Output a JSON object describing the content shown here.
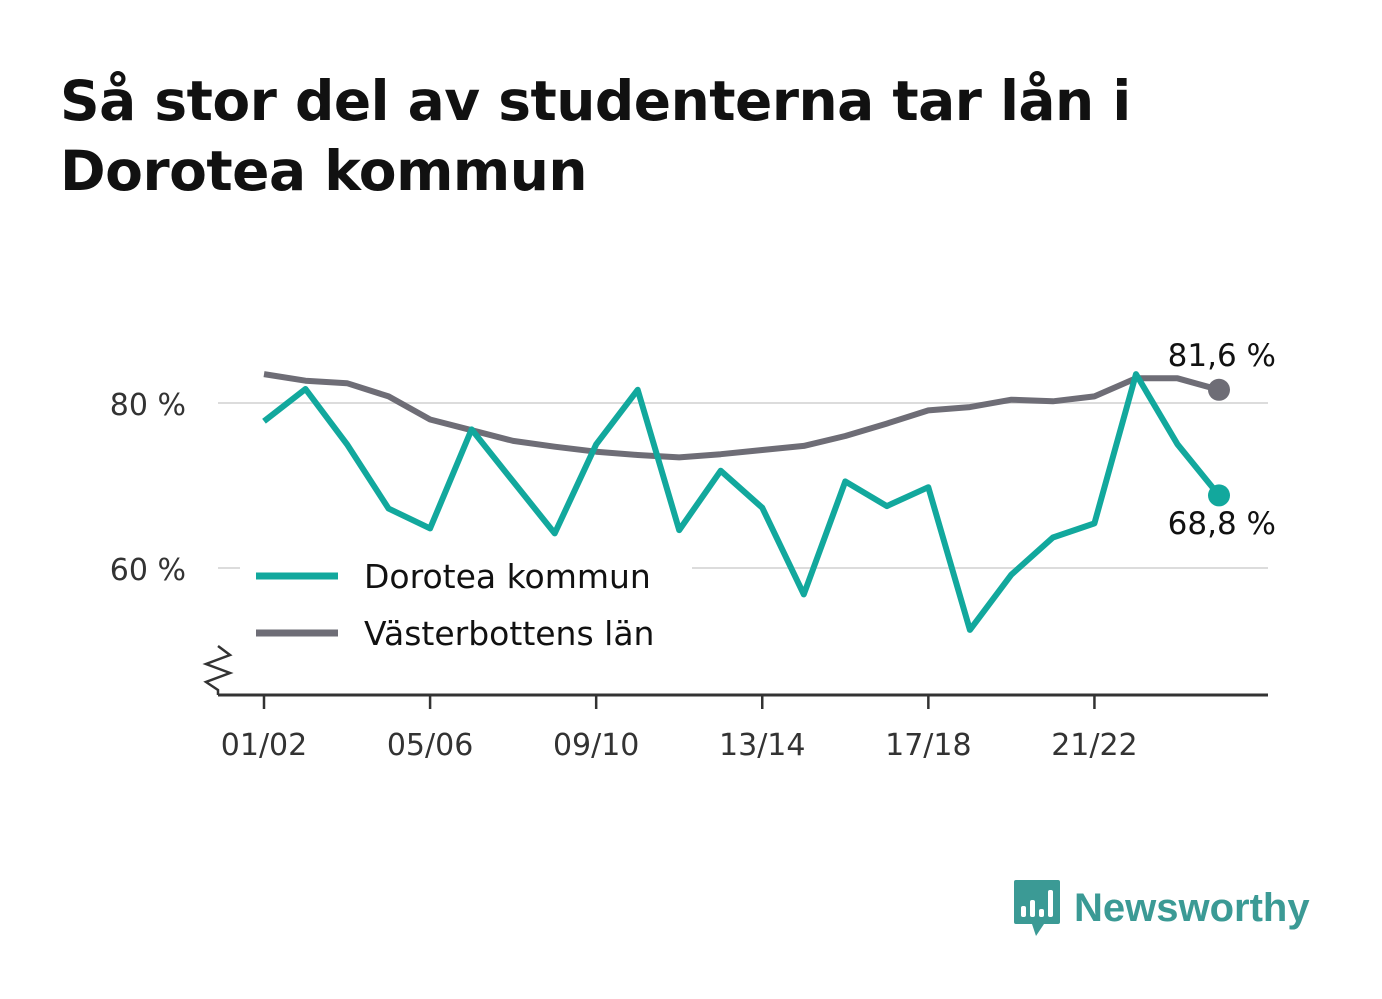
{
  "title": "Så stor del av studenterna tar lån i Dorotea kommun",
  "brand": {
    "name": "Newsworthy",
    "icon": "newsworthy-logo-icon",
    "color": "#3b9a95"
  },
  "chart_data": {
    "type": "line",
    "title": "Så stor del av studenterna tar lån i Dorotea kommun",
    "xlabel": "",
    "ylabel": "",
    "ylim": [
      45,
      89
    ],
    "y_axis_break": true,
    "grid": "horizontal",
    "legend_position": "bottom-left",
    "yticks": [
      60,
      80
    ],
    "ytick_labels": [
      "60 %",
      "80 %"
    ],
    "x": [
      "01/02",
      "02/03",
      "03/04",
      "04/05",
      "05/06",
      "06/07",
      "07/08",
      "08/09",
      "09/10",
      "10/11",
      "11/12",
      "12/13",
      "13/14",
      "14/15",
      "15/16",
      "16/17",
      "17/18",
      "18/19",
      "19/20",
      "20/21",
      "21/22",
      "22/23",
      "23/24",
      "24/25"
    ],
    "xticks": [
      "01/02",
      "05/06",
      "09/10",
      "13/14",
      "17/18",
      "21/22"
    ],
    "series": [
      {
        "name": "Dorotea kommun",
        "color": "#12a89d",
        "values": [
          77.8,
          81.7,
          75.0,
          67.2,
          64.8,
          76.8,
          70.5,
          64.2,
          75.0,
          81.6,
          64.6,
          71.8,
          67.3,
          56.8,
          70.5,
          67.5,
          69.8,
          52.5,
          59.2,
          63.7,
          65.4,
          83.5,
          75.0,
          68.8
        ],
        "end_label": "68,8 %"
      },
      {
        "name": "Västerbottens län",
        "color": "#6e6d76",
        "values": [
          83.5,
          82.7,
          82.4,
          80.8,
          78.0,
          76.7,
          75.4,
          74.7,
          74.1,
          73.7,
          73.4,
          73.8,
          74.3,
          74.8,
          76.0,
          77.5,
          79.1,
          79.5,
          80.4,
          80.2,
          80.8,
          83.0,
          83.0,
          81.6
        ],
        "end_label": "81,6 %"
      }
    ]
  }
}
